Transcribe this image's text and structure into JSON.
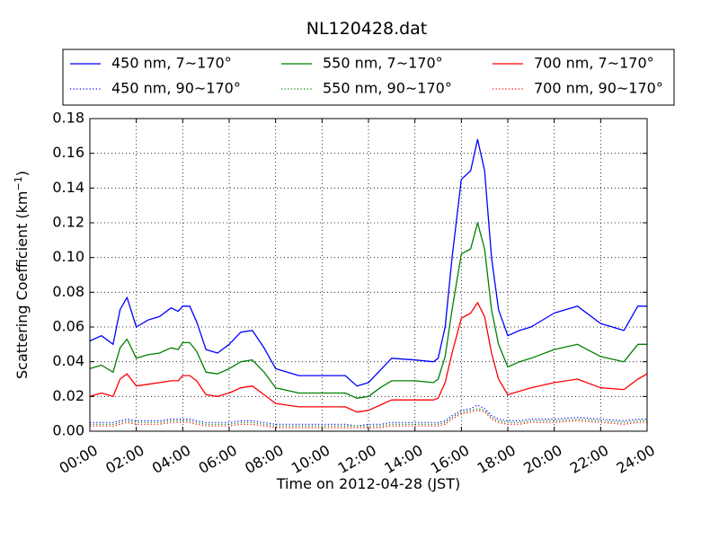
{
  "chart_data": {
    "type": "line",
    "title": "NL120428.dat",
    "xlabel": "Time on 2012-04-28 (JST)",
    "ylabel": "Scattering Coefficient (km$^{-1}$)",
    "ylabel_parts": {
      "base": "Scattering Coefficient (km",
      "sup": "−1",
      "end": ")"
    },
    "xlim": [
      0,
      24
    ],
    "ylim": [
      0,
      0.18
    ],
    "x_tick_labels": [
      "00:00",
      "02:00",
      "04:00",
      "06:00",
      "08:00",
      "10:00",
      "12:00",
      "14:00",
      "16:00",
      "18:00",
      "20:00",
      "22:00",
      "24:00"
    ],
    "x_tick_values": [
      0,
      2,
      4,
      6,
      8,
      10,
      12,
      14,
      16,
      18,
      20,
      22,
      24
    ],
    "y_tick_labels": [
      "0.00",
      "0.02",
      "0.04",
      "0.06",
      "0.08",
      "0.10",
      "0.12",
      "0.14",
      "0.16",
      "0.18"
    ],
    "y_tick_values": [
      0,
      0.02,
      0.04,
      0.06,
      0.08,
      0.1,
      0.12,
      0.14,
      0.16,
      0.18
    ],
    "grid": true,
    "legend_placement": "top, above plot",
    "x_hours": [
      0,
      0.5,
      1,
      1.3,
      1.6,
      2,
      2.5,
      3,
      3.5,
      3.8,
      4,
      4.3,
      4.6,
      5,
      5.5,
      6,
      6.5,
      7,
      7.5,
      8,
      9,
      10,
      11,
      11.5,
      12,
      12.5,
      13,
      14,
      14.8,
      15,
      15.3,
      15.6,
      16,
      16.4,
      16.7,
      17,
      17.3,
      17.6,
      18,
      18.5,
      19,
      20,
      21,
      22,
      23,
      23.6,
      24
    ],
    "series": [
      {
        "name": "450 nm, 7∼170°",
        "color": "#0000ff",
        "style": "solid",
        "values": [
          0.052,
          0.055,
          0.05,
          0.07,
          0.077,
          0.06,
          0.064,
          0.066,
          0.071,
          0.069,
          0.072,
          0.072,
          0.063,
          0.047,
          0.045,
          0.05,
          0.057,
          0.058,
          0.048,
          0.036,
          0.032,
          0.032,
          0.032,
          0.026,
          0.028,
          0.035,
          0.042,
          0.041,
          0.04,
          0.042,
          0.06,
          0.1,
          0.145,
          0.15,
          0.168,
          0.15,
          0.1,
          0.07,
          0.055,
          0.058,
          0.06,
          0.068,
          0.072,
          0.062,
          0.058,
          0.072,
          0.072
        ]
      },
      {
        "name": "450 nm, 90∼170°",
        "color": "#0000ff",
        "style": "dotted",
        "values": [
          0.005,
          0.005,
          0.005,
          0.006,
          0.007,
          0.006,
          0.006,
          0.006,
          0.007,
          0.007,
          0.007,
          0.007,
          0.006,
          0.005,
          0.005,
          0.005,
          0.006,
          0.006,
          0.005,
          0.004,
          0.004,
          0.004,
          0.004,
          0.003,
          0.004,
          0.004,
          0.005,
          0.005,
          0.005,
          0.005,
          0.006,
          0.009,
          0.012,
          0.013,
          0.015,
          0.013,
          0.009,
          0.007,
          0.006,
          0.006,
          0.007,
          0.007,
          0.008,
          0.007,
          0.006,
          0.007,
          0.007
        ]
      },
      {
        "name": "550 nm, 7∼170°",
        "color": "#008000",
        "style": "solid",
        "values": [
          0.036,
          0.038,
          0.034,
          0.048,
          0.053,
          0.042,
          0.044,
          0.045,
          0.048,
          0.047,
          0.051,
          0.051,
          0.046,
          0.034,
          0.033,
          0.036,
          0.04,
          0.041,
          0.034,
          0.025,
          0.022,
          0.022,
          0.022,
          0.019,
          0.02,
          0.025,
          0.029,
          0.029,
          0.028,
          0.03,
          0.043,
          0.07,
          0.102,
          0.105,
          0.12,
          0.105,
          0.07,
          0.05,
          0.037,
          0.04,
          0.042,
          0.047,
          0.05,
          0.043,
          0.04,
          0.05,
          0.05
        ]
      },
      {
        "name": "550 nm, 90∼170°",
        "color": "#008000",
        "style": "dotted",
        "values": [
          0.004,
          0.004,
          0.004,
          0.005,
          0.006,
          0.005,
          0.005,
          0.005,
          0.006,
          0.006,
          0.006,
          0.006,
          0.005,
          0.004,
          0.004,
          0.004,
          0.005,
          0.005,
          0.004,
          0.003,
          0.003,
          0.003,
          0.003,
          0.003,
          0.003,
          0.003,
          0.004,
          0.004,
          0.004,
          0.004,
          0.005,
          0.008,
          0.011,
          0.012,
          0.013,
          0.012,
          0.008,
          0.006,
          0.005,
          0.005,
          0.006,
          0.006,
          0.007,
          0.006,
          0.005,
          0.006,
          0.006
        ]
      },
      {
        "name": "700 nm, 7∼170°",
        "color": "#ff0000",
        "style": "solid",
        "values": [
          0.02,
          0.022,
          0.02,
          0.03,
          0.033,
          0.026,
          0.027,
          0.028,
          0.029,
          0.029,
          0.032,
          0.032,
          0.029,
          0.021,
          0.02,
          0.022,
          0.025,
          0.026,
          0.021,
          0.016,
          0.014,
          0.014,
          0.014,
          0.011,
          0.012,
          0.015,
          0.018,
          0.018,
          0.018,
          0.019,
          0.028,
          0.045,
          0.065,
          0.068,
          0.074,
          0.066,
          0.045,
          0.03,
          0.021,
          0.023,
          0.025,
          0.028,
          0.03,
          0.025,
          0.024,
          0.03,
          0.033
        ]
      },
      {
        "name": "700 nm, 90∼170°",
        "color": "#ff0000",
        "style": "dotted",
        "values": [
          0.003,
          0.003,
          0.003,
          0.004,
          0.005,
          0.004,
          0.004,
          0.004,
          0.005,
          0.005,
          0.005,
          0.005,
          0.004,
          0.003,
          0.003,
          0.003,
          0.004,
          0.004,
          0.003,
          0.002,
          0.002,
          0.002,
          0.002,
          0.002,
          0.002,
          0.002,
          0.003,
          0.003,
          0.003,
          0.003,
          0.004,
          0.007,
          0.01,
          0.011,
          0.012,
          0.011,
          0.007,
          0.005,
          0.004,
          0.004,
          0.005,
          0.005,
          0.006,
          0.005,
          0.004,
          0.005,
          0.005
        ]
      }
    ]
  }
}
